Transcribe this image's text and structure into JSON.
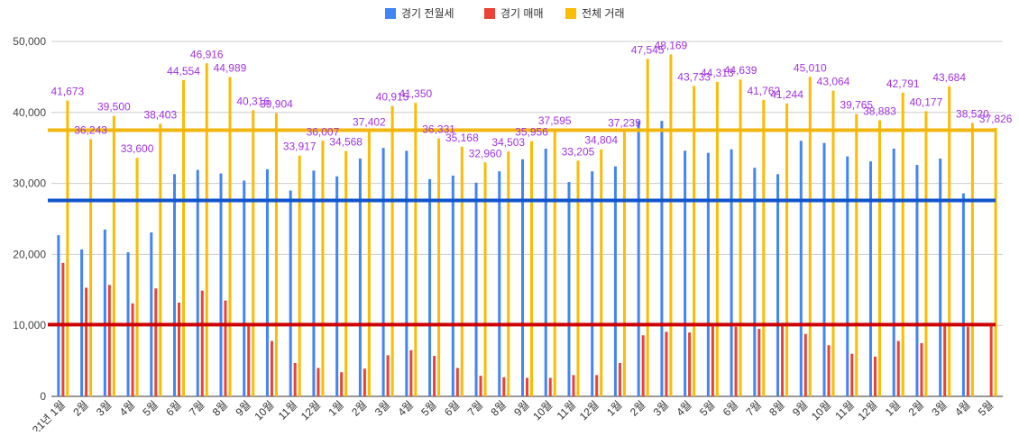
{
  "chart_data": {
    "type": "bar",
    "title": "",
    "xlabel": "",
    "ylabel": "",
    "ylim": [
      0,
      50000
    ],
    "yticks": [
      0,
      10000,
      20000,
      30000,
      40000,
      50000
    ],
    "ytick_labels": [
      "0",
      "10,000",
      "20,000",
      "30,000",
      "40,000",
      "50,000"
    ],
    "grid": true,
    "legend_position": "top",
    "categories": [
      "21년 1월",
      "2월",
      "3월",
      "4월",
      "5월",
      "6월",
      "7월",
      "8월",
      "9월",
      "10월",
      "11월",
      "12월",
      "1월",
      "2월",
      "3월",
      "4월",
      "5월",
      "6월",
      "7월",
      "8월",
      "9월",
      "10월",
      "11월",
      "12월",
      "1월",
      "2월",
      "3월",
      "4월",
      "5월",
      "6월",
      "7월",
      "8월",
      "9월",
      "10월",
      "11월",
      "12월",
      "1월",
      "2월",
      "3월",
      "4월",
      "5월"
    ],
    "series": [
      {
        "name": "경기 전월세",
        "color": "#4285f4",
        "values": [
          22700,
          20700,
          23500,
          20300,
          23100,
          31300,
          31900,
          31400,
          30400,
          32000,
          29000,
          31800,
          31000,
          33500,
          35000,
          34600,
          30600,
          31100,
          30100,
          31700,
          33400,
          34900,
          30200,
          31700,
          32400,
          38800,
          38800,
          34600,
          34300,
          34800,
          32200,
          31300,
          36000,
          35700,
          33800,
          33100,
          34900,
          32600,
          33500,
          28600,
          0
        ]
      },
      {
        "name": "경기 매매",
        "color": "#ea4335",
        "values": [
          18800,
          15300,
          15700,
          13100,
          15200,
          13200,
          14900,
          13500,
          10100,
          7800,
          4700,
          4000,
          3400,
          3900,
          5800,
          6500,
          5700,
          4000,
          2900,
          2700,
          2600,
          2600,
          3000,
          3000,
          4700,
          8600,
          9100,
          9000,
          10100,
          9800,
          9500,
          10000,
          8800,
          7200,
          6000,
          5600,
          7800,
          7500,
          10000,
          9800,
          10100
        ]
      },
      {
        "name": "전체 거래",
        "color": "#fbbc04",
        "values": [
          41673,
          36243,
          39500,
          33600,
          38403,
          44554,
          46916,
          44989,
          40316,
          39904,
          33917,
          36007,
          34568,
          37402,
          40915,
          41350,
          36331,
          35168,
          32960,
          34503,
          35956,
          37595,
          33205,
          34804,
          37239,
          47545,
          48169,
          43733,
          44313,
          44639,
          41762,
          41244,
          45010,
          43064,
          39765,
          38883,
          42791,
          40177,
          43684,
          38520,
          37826
        ],
        "data_labels": [
          "41,673",
          "36,243",
          "39,500",
          "33,600",
          "38,403",
          "44,554",
          "46,916",
          "44,989",
          "40,316",
          "39,904",
          "33,917",
          "36,007",
          "34,568",
          "37,402",
          "40,915",
          "41,350",
          "36,331",
          "35,168",
          "32,960",
          "34,503",
          "35,956",
          "37,595",
          "33,205",
          "34,804",
          "37,239",
          "47,545",
          "48,169",
          "43,733",
          "44,313",
          "44,639",
          "41,762",
          "41,244",
          "45,010",
          "43,064",
          "39,765",
          "38,883",
          "42,791",
          "40,177",
          "43,684",
          "38,520",
          "37,826"
        ]
      }
    ],
    "average_lines": [
      {
        "series": "경기 전월세",
        "color": "#1155cc",
        "value": 27600
      },
      {
        "series": "경기 매매",
        "color": "#cc0000",
        "value": 10100
      },
      {
        "series": "전체 거래",
        "color": "#f1b60f",
        "value": 37500
      }
    ],
    "data_label_color": "#a033e0"
  }
}
